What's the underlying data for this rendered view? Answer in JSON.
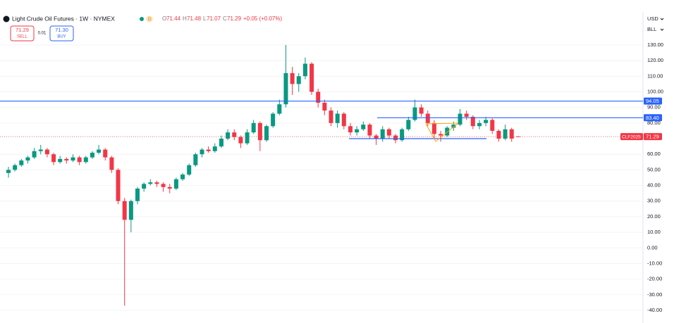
{
  "header": {
    "symbol": "Light Crude Oil Futures · 1W · NYMEX",
    "badge": "D",
    "o_label": "O",
    "o": "71.44",
    "h_label": "H",
    "h": "71.48",
    "l_label": "L",
    "l": "71.07",
    "c_label": "C",
    "c": "71.29",
    "change": "+0.05 (+0.07%)",
    "sell_price": "71.29",
    "sell_label": "SELL",
    "spread": "0.01",
    "buy_price": "71.30",
    "buy_label": "BUY",
    "currency": "USD",
    "unit": "BLL"
  },
  "chart_data": {
    "type": "candlestick",
    "up_color": "#089981",
    "down_color": "#f23645",
    "grid": true,
    "ylim": [
      -48.1,
      149.8
    ],
    "yticks": [
      {
        "value": 130,
        "label": "130.00"
      },
      {
        "value": 120,
        "label": "120.00"
      },
      {
        "value": 110,
        "label": "110.00"
      },
      {
        "value": 100,
        "label": "100.00"
      },
      {
        "value": 90,
        "label": "90.00"
      },
      {
        "value": 80,
        "label": "80.00"
      },
      {
        "value": 60,
        "label": "60.00"
      },
      {
        "value": 50,
        "label": "50.00"
      },
      {
        "value": 40,
        "label": "40.00"
      },
      {
        "value": 30,
        "label": "30.00"
      },
      {
        "value": 20,
        "label": "20.00"
      },
      {
        "value": 10,
        "label": "10.00"
      },
      {
        "value": 0,
        "label": "0.00"
      },
      {
        "value": -10,
        "label": "-10.00"
      },
      {
        "value": -20,
        "label": "-20.00"
      },
      {
        "value": -30,
        "label": "-30.00"
      },
      {
        "value": -40,
        "label": "-40.00"
      }
    ],
    "levels": [
      {
        "value": 94.05,
        "label": "94.05",
        "color": "#2962ff"
      },
      {
        "value": 83.4,
        "label": "83.40",
        "color": "#2962ff"
      },
      {
        "value": 70,
        "color": "#2962ff"
      }
    ],
    "last_price": {
      "symbol": "CLF2025",
      "value": 71.29,
      "label": "71.29",
      "color": "#f23645"
    },
    "ohlc": [
      [
        48,
        52,
        45,
        50
      ],
      [
        50,
        54,
        49,
        53
      ],
      [
        53,
        57,
        52,
        56
      ],
      [
        56,
        59,
        54,
        58
      ],
      [
        58,
        64,
        57,
        62
      ],
      [
        62,
        66,
        60,
        63
      ],
      [
        63,
        64,
        58,
        60
      ],
      [
        60,
        61,
        53,
        55
      ],
      [
        55,
        59,
        54,
        57
      ],
      [
        57,
        58,
        54,
        56
      ],
      [
        56,
        60,
        55,
        58
      ],
      [
        58,
        59,
        53,
        55
      ],
      [
        55,
        59,
        54,
        58
      ],
      [
        58,
        62,
        57,
        61
      ],
      [
        61,
        66,
        60,
        63
      ],
      [
        63,
        64,
        56,
        58
      ],
      [
        58,
        59,
        48,
        50
      ],
      [
        50,
        51,
        28,
        30
      ],
      [
        30,
        32,
        -37,
        18
      ],
      [
        18,
        31,
        10,
        30
      ],
      [
        30,
        39,
        28,
        38
      ],
      [
        38,
        42,
        36,
        41
      ],
      [
        41,
        44,
        40,
        42
      ],
      [
        42,
        43,
        39,
        41
      ],
      [
        41,
        42,
        36,
        39
      ],
      [
        39,
        41,
        35,
        38
      ],
      [
        38,
        45,
        37,
        44
      ],
      [
        44,
        48,
        43,
        47
      ],
      [
        47,
        54,
        46,
        53
      ],
      [
        53,
        61,
        52,
        60
      ],
      [
        60,
        64,
        58,
        63
      ],
      [
        63,
        65,
        61,
        62
      ],
      [
        62,
        67,
        61,
        65
      ],
      [
        65,
        72,
        64,
        70
      ],
      [
        70,
        76,
        69,
        74
      ],
      [
        74,
        76,
        69,
        71
      ],
      [
        71,
        72,
        64,
        67
      ],
      [
        67,
        76,
        66,
        74
      ],
      [
        74,
        82,
        73,
        80
      ],
      [
        80,
        81,
        62,
        69
      ],
      [
        69,
        79,
        68,
        78
      ],
      [
        78,
        87,
        77,
        86
      ],
      [
        86,
        95,
        85,
        92
      ],
      [
        92,
        130,
        90,
        112
      ],
      [
        112,
        116,
        98,
        105
      ],
      [
        105,
        112,
        100,
        110
      ],
      [
        110,
        122,
        108,
        118
      ],
      [
        118,
        119,
        98,
        100
      ],
      [
        100,
        102,
        90,
        93
      ],
      [
        93,
        95,
        85,
        88
      ],
      [
        88,
        90,
        78,
        80
      ],
      [
        80,
        88,
        77,
        86
      ],
      [
        86,
        87,
        76,
        78
      ],
      [
        78,
        80,
        72,
        74
      ],
      [
        74,
        78,
        72,
        76
      ],
      [
        76,
        81,
        75,
        79
      ],
      [
        79,
        80,
        70,
        72
      ],
      [
        72,
        73,
        66,
        70
      ],
      [
        70,
        78,
        68,
        76
      ],
      [
        76,
        77,
        70,
        72
      ],
      [
        72,
        73,
        67,
        69
      ],
      [
        69,
        77,
        68,
        76
      ],
      [
        76,
        84,
        75,
        82
      ],
      [
        82,
        95,
        81,
        90
      ],
      [
        90,
        92,
        84,
        86
      ],
      [
        86,
        88,
        78,
        80
      ],
      [
        80,
        82,
        70,
        73
      ],
      [
        73,
        75,
        68,
        72
      ],
      [
        72,
        78,
        71,
        77
      ],
      [
        77,
        81,
        75,
        79
      ],
      [
        79,
        89,
        78,
        86
      ],
      [
        86,
        88,
        82,
        84
      ],
      [
        84,
        85,
        76,
        78
      ],
      [
        78,
        82,
        76,
        80
      ],
      [
        80,
        84,
        78,
        82
      ],
      [
        82,
        83,
        73,
        75
      ],
      [
        75,
        76,
        68,
        70
      ],
      [
        70,
        79,
        69,
        76
      ],
      [
        76,
        77,
        68,
        70
      ],
      [
        71.44,
        71.48,
        71.07,
        71.29
      ]
    ]
  }
}
